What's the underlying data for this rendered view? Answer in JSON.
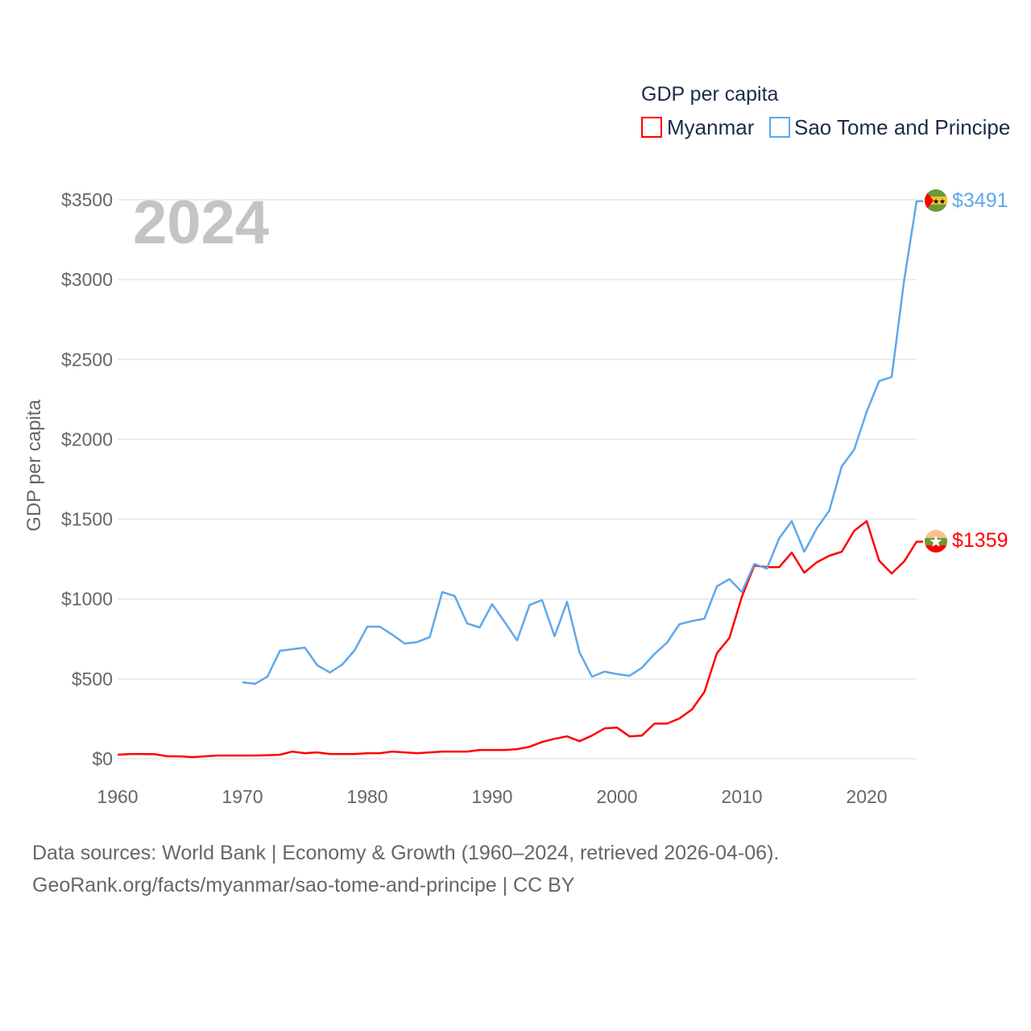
{
  "chart_data": {
    "type": "line",
    "title": "GDP per capita",
    "year_label": "2024",
    "xlabel": "",
    "ylabel": "GDP per capita",
    "xlim": [
      1960,
      2024
    ],
    "ylim": [
      0,
      3500
    ],
    "x_ticks": [
      1960,
      1970,
      1980,
      1990,
      2000,
      2010,
      2020
    ],
    "y_ticks": [
      0,
      500,
      1000,
      1500,
      2000,
      2500,
      3000,
      3500
    ],
    "y_tick_labels": [
      "$0",
      "$500",
      "$1000",
      "$1500",
      "$2000",
      "$2500",
      "$3000",
      "$3500"
    ],
    "grid": true,
    "legend_placement": "top-right",
    "series": [
      {
        "name": "Myanmar",
        "color": "#ff0000",
        "end_label": "$1359",
        "flag": "myanmar-flag",
        "start_year": 1960,
        "values": [
          25,
          30,
          30,
          28,
          15,
          15,
          10,
          15,
          20,
          20,
          20,
          20,
          22,
          25,
          45,
          35,
          40,
          30,
          30,
          30,
          35,
          35,
          45,
          40,
          35,
          40,
          45,
          45,
          45,
          55,
          55,
          55,
          60,
          75,
          105,
          125,
          140,
          110,
          145,
          190,
          195,
          140,
          145,
          220,
          220,
          252,
          308,
          418,
          660,
          756,
          1013,
          1210,
          1200,
          1200,
          1291,
          1165,
          1230,
          1271,
          1296,
          1427,
          1488,
          1240,
          1160,
          1235,
          1359
        ]
      },
      {
        "name": "Sao Tome and Principe",
        "color": "#5fa8ec",
        "end_label": "$3491",
        "flag": "sao-tome-flag",
        "start_year": 1970,
        "values": [
          479,
          469,
          514,
          676,
          686,
          696,
          585,
          540,
          590,
          681,
          827,
          827,
          777,
          721,
          731,
          761,
          1044,
          1019,
          847,
          822,
          968,
          857,
          741,
          963,
          993,
          767,
          983,
          666,
          514,
          545,
          530,
          519,
          570,
          656,
          726,
          842,
          862,
          877,
          1079,
          1125,
          1044,
          1220,
          1190,
          1382,
          1488,
          1296,
          1442,
          1553,
          1830,
          1936,
          2173,
          2365,
          2390,
          2995,
          3491
        ]
      }
    ]
  },
  "footer": {
    "line1": "Data sources: World Bank | Economy & Growth (1960–2024, retrieved 2026-04-06).",
    "line2": "GeoRank.org/facts/myanmar/sao-tome-and-principe | CC BY"
  }
}
